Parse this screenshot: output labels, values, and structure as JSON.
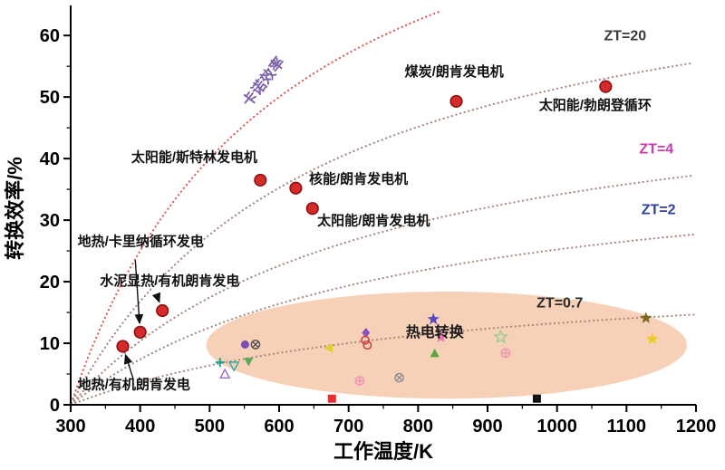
{
  "chart_data": {
    "type": "scatter",
    "title": "",
    "xlabel": "工作温度/K",
    "ylabel": "转换效率/%",
    "xlim": [
      300,
      1200
    ],
    "ylim": [
      0,
      64
    ],
    "x_major_ticks": [
      300,
      400,
      500,
      600,
      700,
      800,
      900,
      1000,
      1100,
      1200
    ],
    "y_major_ticks": [
      0,
      10,
      20,
      30,
      40,
      50,
      60
    ],
    "x_minor_step": 50,
    "y_minor_step": 5,
    "grid": "off",
    "cold_side_temperature_K": 300,
    "carnot_curve": {
      "label": "卡诺效率",
      "color": "#e05a5a",
      "label_color": "#7b5ea7",
      "label_T": 583,
      "label_eff": 52,
      "label_rotation": -52
    },
    "zt_curves": {
      "color": "#a8887f",
      "items": [
        {
          "zt": 20,
          "label": "ZT=20",
          "label_color": "#3a3a3a",
          "label_T": 1098,
          "label_eff": 59.2
        },
        {
          "zt": 4,
          "label": "ZT=4",
          "label_color": "#c43bb0",
          "label_T": 1143,
          "label_eff": 40.8
        },
        {
          "zt": 2,
          "label": "ZT=2",
          "label_color": "#2e3f9e",
          "label_T": 1146,
          "label_eff": 31.0
        },
        {
          "zt": 0.7,
          "label": "ZT=0.7",
          "label_color": "#2a2a2a",
          "label_T": 1004,
          "label_eff": 15.8
        }
      ]
    },
    "heat_engine_points": {
      "marker_color": "#d62b2b",
      "marker_edge": "#8a1111",
      "items": [
        {
          "name": "煤炭/朗肯发电机",
          "T": 855,
          "eff": 49.3,
          "label_T": 852,
          "label_eff": 53.4,
          "anchor": "middle"
        },
        {
          "name": "太阳能/勃朗登循环",
          "T": 1070,
          "eff": 51.7,
          "label_T": 1055,
          "label_eff": 48.0,
          "anchor": "middle"
        },
        {
          "name": "太阳能/斯特林发电机",
          "T": 573,
          "eff": 36.5,
          "label_T": 478,
          "label_eff": 39.5,
          "anchor": "middle"
        },
        {
          "name": "核能/朗肯发电机",
          "T": 624,
          "eff": 35.2,
          "label_T": 643,
          "label_eff": 36.0,
          "anchor": "start"
        },
        {
          "name": "太阳能/朗肯发电机",
          "T": 648,
          "eff": 31.9,
          "label_T": 655,
          "label_eff": 29.2,
          "anchor": "start"
        },
        {
          "name": "地热/卡里纳循环发电",
          "T": 400,
          "eff": 11.8,
          "label_T": 310,
          "label_eff": 25.8,
          "anchor": "start",
          "arrow_from": [
            393,
            23.5
          ]
        },
        {
          "name": "水泥显热/有机朗肯发电",
          "T": 432,
          "eff": 15.3,
          "label_T": 342,
          "label_eff": 19.4,
          "anchor": "start",
          "arrow_from": [
            424,
            17.8
          ]
        },
        {
          "name": "地热/有机朗肯发电",
          "T": 375,
          "eff": 9.5,
          "label_T": 310,
          "label_eff": 2.6,
          "anchor": "start",
          "arrow_from": [
            390,
            4.2
          ]
        }
      ]
    },
    "thermoelectric_region": {
      "label": "热电转换",
      "label_T": 824,
      "label_eff": 11.0,
      "label_color": "#1a1a1a",
      "fill": "#f5c6a5",
      "opacity": 0.8,
      "center_T": 841,
      "center_eff": 9.7,
      "radius_T": 346,
      "radius_eff": 8.7,
      "points": [
        {
          "shape": "plus",
          "color": "#1fa39b",
          "T": 515,
          "eff": 6.9
        },
        {
          "shape": "triangle-open",
          "color": "#9b6fd0",
          "T": 522,
          "eff": 5.0
        },
        {
          "shape": "triangle-down-open",
          "color": "#2aa8a0",
          "T": 535,
          "eff": 6.3
        },
        {
          "shape": "circle",
          "color": "#7a4fb5",
          "T": 551,
          "eff": 9.8
        },
        {
          "shape": "circle-x",
          "color": "#4a4a4a",
          "T": 566,
          "eff": 9.8
        },
        {
          "shape": "triangle-down",
          "color": "#5aa85a",
          "T": 556,
          "eff": 7.0
        },
        {
          "shape": "triangle-left",
          "color": "#e3cf2e",
          "T": 672,
          "eff": 9.2
        },
        {
          "shape": "square",
          "color": "#e53030",
          "T": 676,
          "eff": 1.0
        },
        {
          "shape": "circle-plus-open",
          "color": "#ef8fb4",
          "T": 716,
          "eff": 3.9
        },
        {
          "shape": "diamond",
          "color": "#8a4fc0",
          "T": 725,
          "eff": 11.7
        },
        {
          "shape": "circle-open",
          "color": "#d04040",
          "T": 724,
          "eff": 10.5
        },
        {
          "shape": "circle-open",
          "color": "#d04040",
          "T": 727,
          "eff": 9.7
        },
        {
          "shape": "circle-x",
          "color": "#8c8c8c",
          "T": 773,
          "eff": 4.4
        },
        {
          "shape": "star",
          "color": "#5948c2",
          "T": 822,
          "eff": 13.9
        },
        {
          "shape": "triangle-up",
          "color": "#54a843",
          "T": 824,
          "eff": 8.4
        },
        {
          "shape": "star",
          "color": "#ef6fb0",
          "T": 833,
          "eff": 11.0
        },
        {
          "shape": "star-open",
          "color": "#8fcf8f",
          "T": 919,
          "eff": 11.0
        },
        {
          "shape": "circle-plus-open",
          "color": "#ef8fb4",
          "T": 926,
          "eff": 8.4
        },
        {
          "shape": "square",
          "color": "#121212",
          "T": 971,
          "eff": 1.0
        },
        {
          "shape": "star",
          "color": "#7a6a26",
          "T": 1128,
          "eff": 14.1
        },
        {
          "shape": "star",
          "color": "#edc92a",
          "T": 1137,
          "eff": 10.7
        }
      ]
    }
  }
}
